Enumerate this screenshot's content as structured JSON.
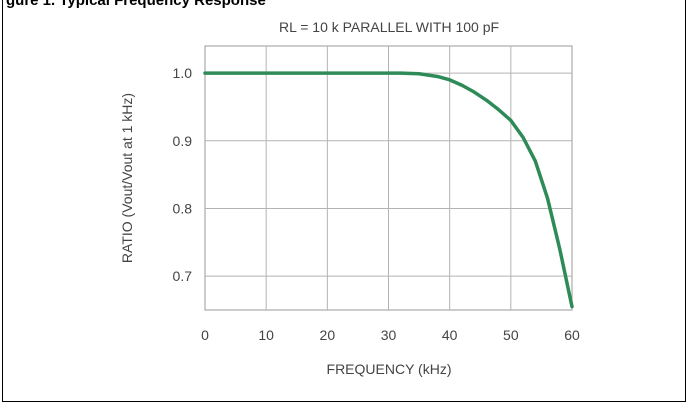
{
  "header": {
    "caption_fragment": "gure 1. Typical Frequency Response"
  },
  "chart_data": {
    "type": "line",
    "title": "RL = 10 k PARALLEL WITH 100 pF",
    "xlabel": "FREQUENCY  (kHz)",
    "ylabel": "RATIO (Vout/Vout at 1 kHz)",
    "xlim": [
      0,
      60
    ],
    "ylim": [
      0.65,
      1.04
    ],
    "x_ticks": [
      "0",
      "10",
      "20",
      "30",
      "40",
      "50",
      "60"
    ],
    "y_ticks": [
      "1.0",
      "0.9",
      "0.8",
      "0.7"
    ],
    "grid": true,
    "series": [
      {
        "color": "#2e8b57",
        "x": [
          0,
          10,
          20,
          30,
          32,
          35,
          38,
          40,
          42,
          44,
          46,
          48,
          50,
          52,
          54,
          56,
          58,
          60
        ],
        "y": [
          1.0,
          1.0,
          1.0,
          1.0,
          1.0,
          0.999,
          0.995,
          0.99,
          0.982,
          0.972,
          0.96,
          0.946,
          0.93,
          0.905,
          0.87,
          0.815,
          0.74,
          0.655
        ]
      }
    ]
  }
}
